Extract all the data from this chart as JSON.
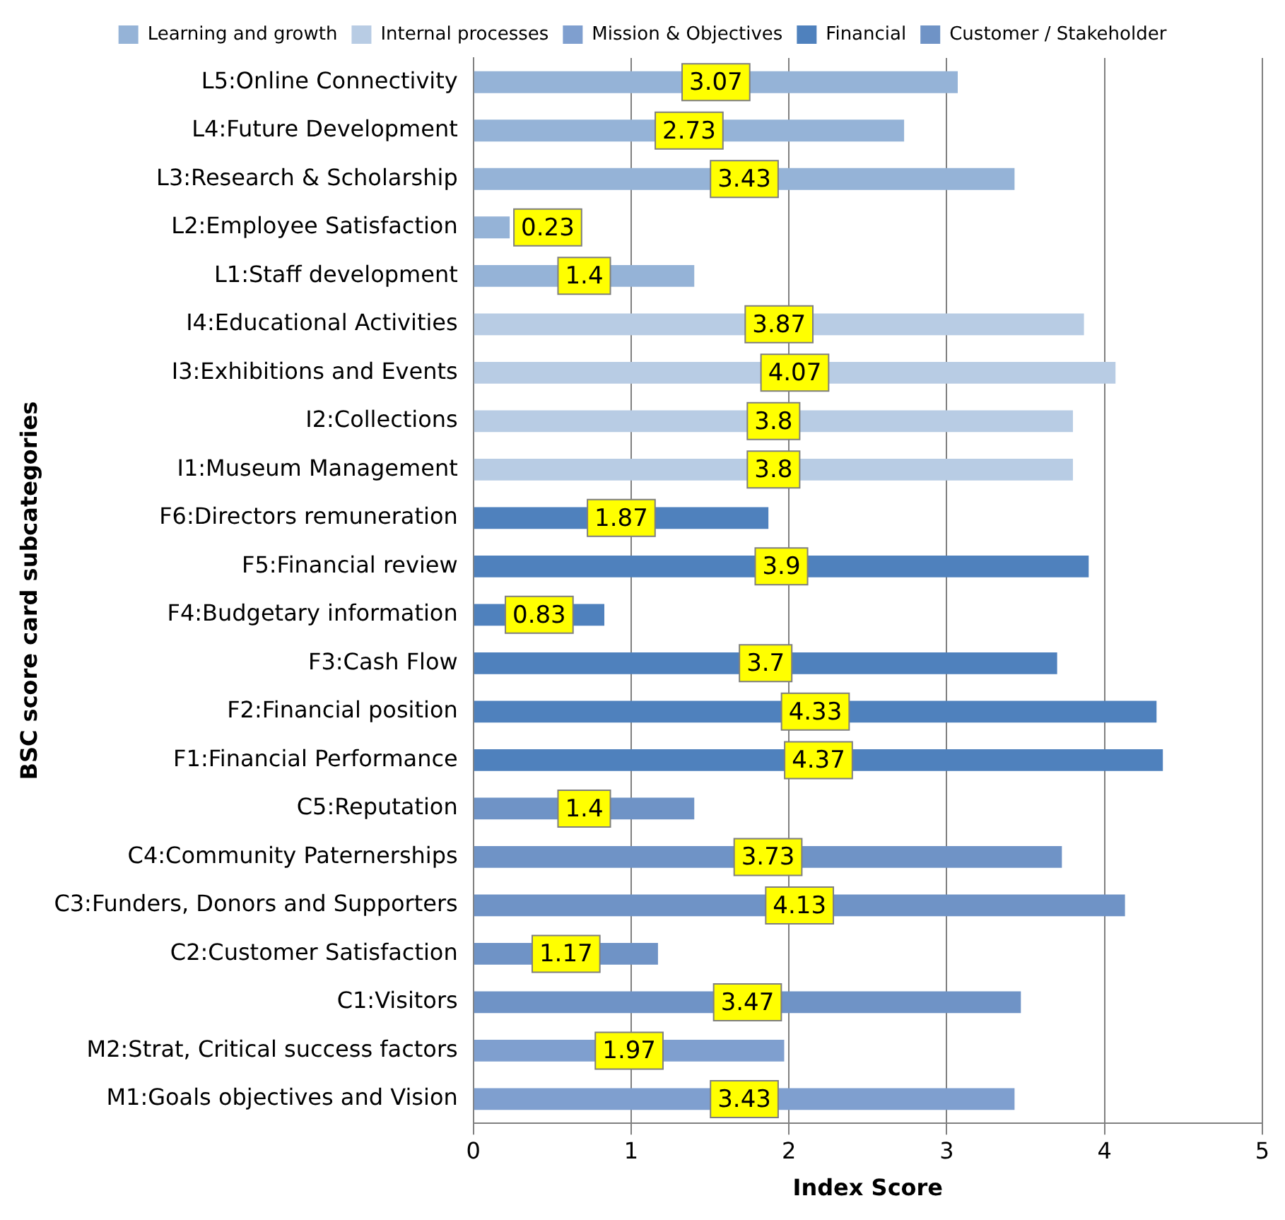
{
  "chart_data": {
    "type": "bar",
    "orientation": "horizontal",
    "xlabel": "Index Score",
    "ylabel": "BSC score card subcategories",
    "categories": [
      "L5:Online Connectivity",
      "L4:Future Development",
      "L3:Research & Scholarship",
      "L2:Employee Satisfaction",
      "L1:Staff development",
      "I4:Educational Activities",
      "I3:Exhibitions and Events",
      "I2:Collections",
      "I1:Museum Management",
      "F6:Directors remuneration",
      "F5:Financial review",
      "F4:Budgetary information",
      "F3:Cash Flow",
      "F2:Financial position",
      "F1:Financial Performance",
      "C5:Reputation",
      "C4:Community Paternerships",
      "C3:Funders, Donors and Supporters",
      "C2:Customer Satisfaction",
      "C1:Visitors",
      "M2:Strat, Critical success factors",
      "M1:Goals objectives and Vision"
    ],
    "series": [
      {
        "name": "Learning and growth",
        "color": "#95b3d7",
        "values": [
          3.07,
          2.73,
          3.43,
          0.23,
          1.4,
          null,
          null,
          null,
          null,
          null,
          null,
          null,
          null,
          null,
          null,
          null,
          null,
          null,
          null,
          null,
          null,
          null
        ]
      },
      {
        "name": "Internal processes",
        "color": "#b8cce4",
        "values": [
          null,
          null,
          null,
          null,
          null,
          3.87,
          4.07,
          3.8,
          3.8,
          null,
          null,
          null,
          null,
          null,
          null,
          null,
          null,
          null,
          null,
          null,
          null,
          null
        ]
      },
      {
        "name": "Mission & Objectives",
        "color": "#7f9fcf",
        "values": [
          null,
          null,
          null,
          null,
          null,
          null,
          null,
          null,
          null,
          null,
          null,
          null,
          null,
          null,
          null,
          null,
          null,
          null,
          null,
          null,
          1.97,
          3.43
        ]
      },
      {
        "name": "Financial",
        "color": "#4f81bd",
        "values": [
          null,
          null,
          null,
          null,
          null,
          null,
          null,
          null,
          null,
          1.87,
          3.9,
          0.83,
          3.7,
          4.33,
          4.37,
          null,
          null,
          null,
          null,
          null,
          null,
          null
        ]
      },
      {
        "name": "Customer / Stakeholder",
        "color": "#6f93c6",
        "values": [
          null,
          null,
          null,
          null,
          null,
          null,
          null,
          null,
          null,
          null,
          null,
          null,
          null,
          null,
          null,
          1.4,
          3.73,
          4.13,
          1.17,
          3.47,
          null,
          null
        ]
      }
    ],
    "xlim": [
      0,
      5
    ],
    "xticks": [
      0,
      1,
      2,
      3,
      4,
      5
    ],
    "grid": "x",
    "legend": "top",
    "data_labels": true
  }
}
